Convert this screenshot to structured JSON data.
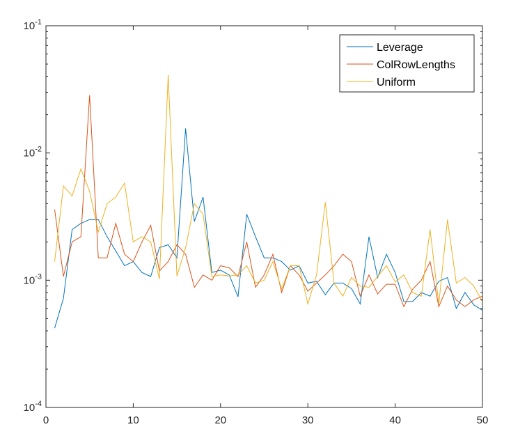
{
  "chart_data": {
    "type": "line",
    "title": "",
    "xlabel": "",
    "ylabel": "",
    "xlim": [
      0,
      50
    ],
    "ylim": [
      0.0001,
      0.1
    ],
    "yscale": "log",
    "grid": false,
    "legend_position": "top-right",
    "xticks": [
      0,
      10,
      20,
      30,
      40,
      50
    ],
    "yticks": [
      {
        "value": 0.0001,
        "base": "10",
        "exp": "-4"
      },
      {
        "value": 0.001,
        "base": "10",
        "exp": "-3"
      },
      {
        "value": 0.01,
        "base": "10",
        "exp": "-2"
      },
      {
        "value": 0.1,
        "base": "10",
        "exp": "-1"
      }
    ],
    "x": [
      1,
      2,
      3,
      4,
      5,
      6,
      7,
      8,
      9,
      10,
      11,
      12,
      13,
      14,
      15,
      16,
      17,
      18,
      19,
      20,
      21,
      22,
      23,
      24,
      25,
      26,
      27,
      28,
      29,
      30,
      31,
      32,
      33,
      34,
      35,
      36,
      37,
      38,
      39,
      40,
      41,
      42,
      43,
      44,
      45,
      46,
      47,
      48,
      49,
      50
    ],
    "series": [
      {
        "name": "Leverage",
        "color": "#0072BD",
        "values": [
          0.00042,
          0.00072,
          0.0025,
          0.0028,
          0.003,
          0.003,
          0.0022,
          0.0017,
          0.0013,
          0.0014,
          0.00115,
          0.00107,
          0.0018,
          0.0019,
          0.0015,
          0.0156,
          0.0029,
          0.0045,
          0.00115,
          0.0012,
          0.0011,
          0.00074,
          0.0033,
          0.0022,
          0.0015,
          0.0015,
          0.0014,
          0.0012,
          0.0013,
          0.00095,
          0.00098,
          0.00077,
          0.00095,
          0.00095,
          0.00086,
          0.00065,
          0.0022,
          0.00105,
          0.0016,
          0.00115,
          0.00068,
          0.00068,
          0.0008,
          0.00075,
          0.00098,
          0.00105,
          0.0006,
          0.0008,
          0.00064,
          0.00058
        ]
      },
      {
        "name": "ColRowLengths",
        "color": "#D95319",
        "values": [
          0.0036,
          0.00107,
          0.002,
          0.0022,
          0.0285,
          0.0015,
          0.0015,
          0.0028,
          0.0016,
          0.0014,
          0.002,
          0.0027,
          0.00118,
          0.0014,
          0.0019,
          0.0016,
          0.00088,
          0.0011,
          0.001,
          0.0013,
          0.00125,
          0.00107,
          0.002,
          0.00088,
          0.0011,
          0.0016,
          0.0008,
          0.0013,
          0.0011,
          0.00082,
          0.00095,
          0.0011,
          0.0013,
          0.0016,
          0.0014,
          0.00075,
          0.0011,
          0.00078,
          0.00093,
          0.00093,
          0.00062,
          0.00085,
          0.001,
          0.0014,
          0.00062,
          0.0009,
          0.0007,
          0.00062,
          0.0007,
          0.00075
        ]
      },
      {
        "name": "Uniform",
        "color": "#EDB120",
        "values": [
          0.0014,
          0.0055,
          0.0046,
          0.0075,
          0.005,
          0.0024,
          0.004,
          0.0045,
          0.0058,
          0.002,
          0.0022,
          0.002,
          0.00102,
          0.041,
          0.00108,
          0.0018,
          0.004,
          0.0033,
          0.00107,
          0.0011,
          0.00108,
          0.0011,
          0.0013,
          0.00095,
          0.001,
          0.0014,
          0.00085,
          0.0013,
          0.0013,
          0.00065,
          0.0011,
          0.0041,
          0.00095,
          0.00075,
          0.00105,
          0.0009,
          0.00088,
          0.00107,
          0.0013,
          0.00097,
          0.0011,
          0.0008,
          0.00075,
          0.0025,
          0.00065,
          0.003,
          0.00095,
          0.00105,
          0.0009,
          0.00068
        ]
      }
    ]
  }
}
